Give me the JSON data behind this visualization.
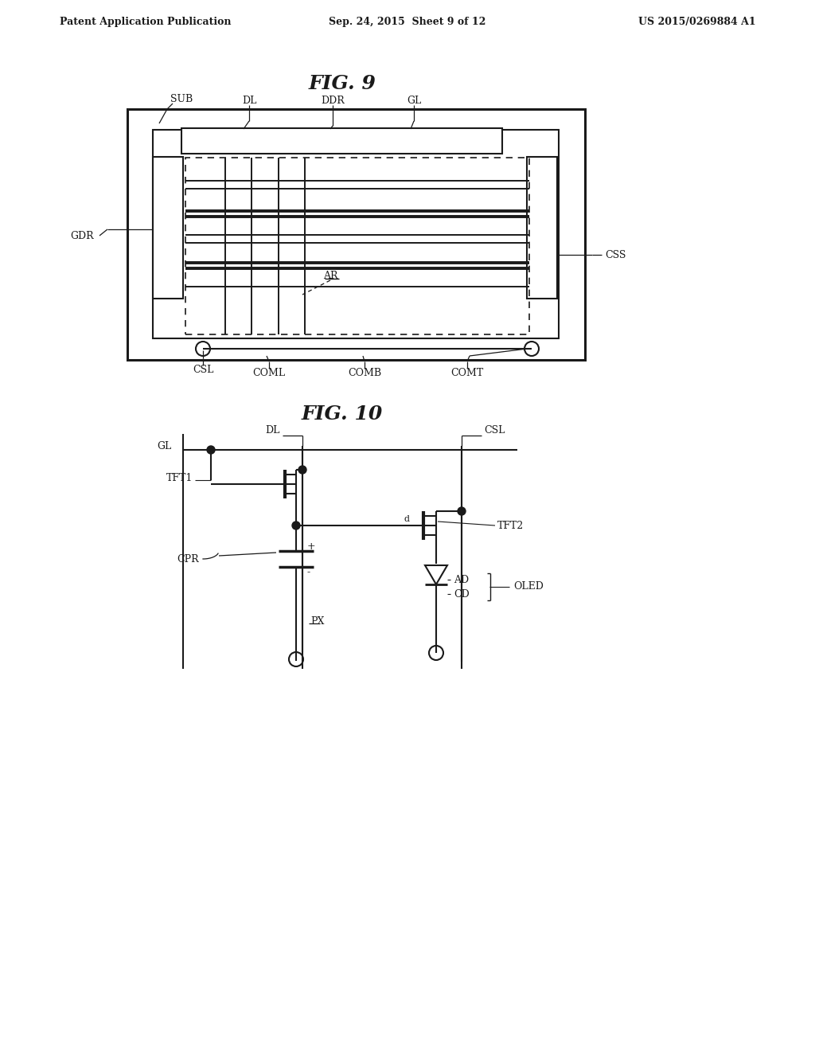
{
  "bg": "#ffffff",
  "lc": "#1a1a1a",
  "tc": "#1a1a1a",
  "header_left": "Patent Application Publication",
  "header_center": "Sep. 24, 2015  Sheet 9 of 12",
  "header_right": "US 2015/0269884 A1",
  "fig9_title": "FIG. 9",
  "fig10_title": "FIG. 10"
}
